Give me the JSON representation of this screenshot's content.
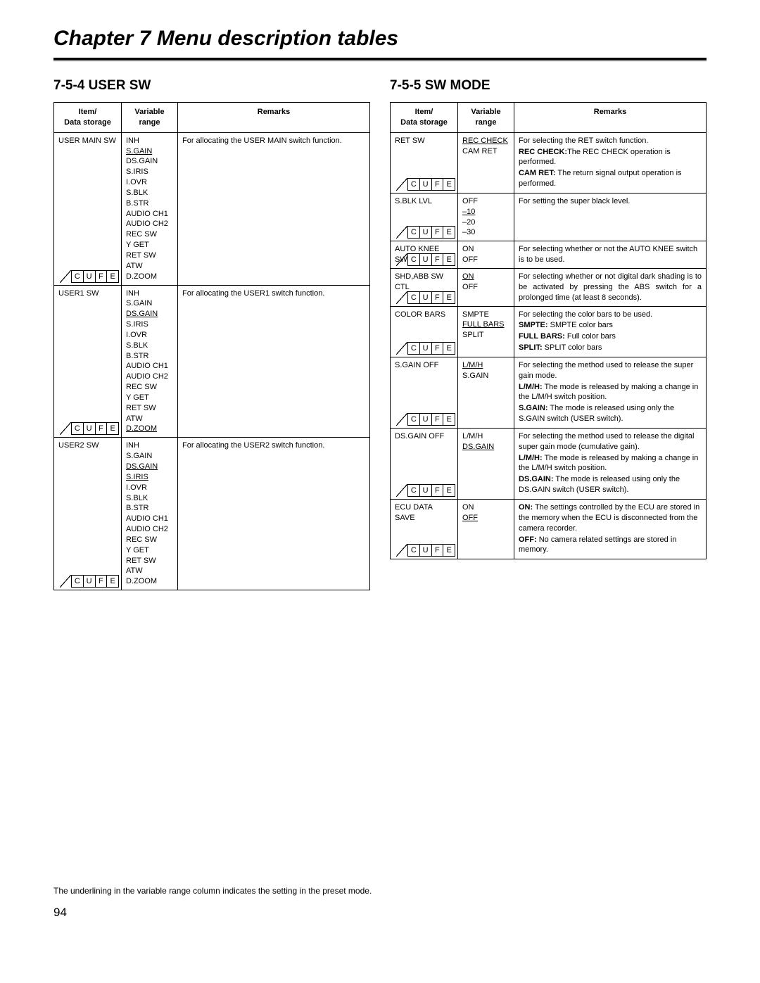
{
  "chapter_title": "Chapter 7  Menu description tables",
  "footnote": "The underlining in the variable range column indicates the setting in the preset mode.",
  "page_number": "94",
  "cufe_labels": [
    "C",
    "U",
    "F",
    "E"
  ],
  "headers": {
    "item_l1": "Item/",
    "item_l2": "Data storage",
    "vr_l1": "Variable",
    "vr_l2": "range",
    "remarks": "Remarks"
  },
  "left": {
    "section": "7-5-4 USER SW",
    "rows": [
      {
        "item": "USER MAIN SW",
        "vr": [
          {
            "t": "INH"
          },
          {
            "t": "S.GAIN",
            "d": true
          },
          {
            "t": "DS.GAIN"
          },
          {
            "t": "S.IRIS"
          },
          {
            "t": "I.OVR"
          },
          {
            "t": "S.BLK"
          },
          {
            "t": "B.STR"
          },
          {
            "t": "AUDIO CH1"
          },
          {
            "t": "AUDIO CH2"
          },
          {
            "t": "REC SW"
          },
          {
            "t": "Y GET"
          },
          {
            "t": "RET SW"
          },
          {
            "t": "ATW"
          },
          {
            "t": "D.ZOOM"
          }
        ],
        "remarks_plain_justify": "For allocating the USER MAIN switch function."
      },
      {
        "item": "USER1 SW",
        "vr": [
          {
            "t": "INH"
          },
          {
            "t": "S.GAIN"
          },
          {
            "t": "DS.GAIN",
            "d": true
          },
          {
            "t": "S.IRIS"
          },
          {
            "t": "I.OVR"
          },
          {
            "t": "S.BLK"
          },
          {
            "t": "B.STR"
          },
          {
            "t": "AUDIO CH1"
          },
          {
            "t": "AUDIO CH2"
          },
          {
            "t": "REC SW"
          },
          {
            "t": "Y GET"
          },
          {
            "t": "RET SW"
          },
          {
            "t": "ATW"
          },
          {
            "t": "D.ZOOM",
            "d": true
          }
        ],
        "remarks_plain": "For allocating the USER1 switch function."
      },
      {
        "item": "USER2 SW",
        "vr": [
          {
            "t": "INH"
          },
          {
            "t": "S.GAIN"
          },
          {
            "t": "DS.GAIN",
            "d": true
          },
          {
            "t": "S.IRIS",
            "d": true
          },
          {
            "t": "I.OVR"
          },
          {
            "t": "S.BLK"
          },
          {
            "t": "B.STR"
          },
          {
            "t": "AUDIO CH1"
          },
          {
            "t": "AUDIO CH2"
          },
          {
            "t": "REC SW"
          },
          {
            "t": "Y GET"
          },
          {
            "t": "RET SW"
          },
          {
            "t": "ATW"
          },
          {
            "t": "D.ZOOM"
          }
        ],
        "remarks_plain": "For allocating the USER2 switch function."
      }
    ]
  },
  "right": {
    "section": "7-5-5 SW MODE",
    "rows": [
      {
        "item": "RET SW",
        "vr": [
          {
            "t": "REC CHECK",
            "d": true
          },
          {
            "t": "CAM RET"
          }
        ],
        "remarks_stack": [
          {
            "plain": "For selecting the RET switch function."
          },
          {
            "label": "REC CHECK:",
            "desc": "The REC CHECK operation is performed."
          },
          {
            "label": "CAM RET:",
            "desc": " The return signal output operation is performed."
          }
        ]
      },
      {
        "item": "S.BLK LVL",
        "vr": [
          {
            "t": "OFF"
          },
          {
            "t": "–10",
            "d": true
          },
          {
            "t": "–20"
          },
          {
            "t": "–30"
          }
        ],
        "remarks_plain": "For setting the super black level."
      },
      {
        "item": "AUTO KNEE SW",
        "vr": [
          {
            "t": "ON"
          },
          {
            "t": "OFF"
          }
        ],
        "remarks_plain": "For selecting whether or not the AUTO KNEE switch is to be used."
      },
      {
        "item": "SHD,ABB SW CTL",
        "vr": [
          {
            "t": "ON",
            "d": true
          },
          {
            "t": "OFF"
          }
        ],
        "remarks_plain_justify": "For selecting whether or not digital dark shading is to be activated by pressing the ABS switch for a prolonged time (at least 8 seconds)."
      },
      {
        "item": "COLOR BARS",
        "vr": [
          {
            "t": "SMPTE"
          },
          {
            "t": "FULL BARS",
            "d": true
          },
          {
            "t": "SPLIT"
          }
        ],
        "remarks_stack": [
          {
            "plain": "For selecting the color bars to be used."
          },
          {
            "label": "SMPTE:",
            "desc": "       SMPTE color bars"
          },
          {
            "label": "FULL BARS:",
            "desc": " Full color bars"
          },
          {
            "label": "SPLIT:",
            "desc": "         SPLIT color bars"
          }
        ]
      },
      {
        "item": "S.GAIN OFF",
        "vr": [
          {
            "t": "L/M/H",
            "d": true
          },
          {
            "t": "S.GAIN"
          }
        ],
        "remarks_stack": [
          {
            "plain": "For selecting the method used to release the super gain mode."
          },
          {
            "label": "L/M/H:",
            "desc": "   The mode is released by making a change in the L/M/H switch position."
          },
          {
            "label": "S.GAIN:",
            "desc": " The mode is released using only the S.GAIN switch (USER switch)."
          }
        ]
      },
      {
        "item": "DS.GAIN OFF",
        "vr": [
          {
            "t": "L/M/H"
          },
          {
            "t": "DS.GAIN",
            "d": true
          }
        ],
        "remarks_stack": [
          {
            "plain": "For selecting the method used to release the digital super gain mode (cumulative gain)."
          },
          {
            "label": "L/M/H:",
            "desc": "     The mode is released by making a change in the L/M/H switch position."
          },
          {
            "label": "DS.GAIN:",
            "desc": " The mode is released using only the DS.GAIN switch (USER switch)."
          }
        ]
      },
      {
        "item": "ECU DATA SAVE",
        "vr": [
          {
            "t": "ON"
          },
          {
            "t": "OFF",
            "d": true
          }
        ],
        "remarks_stack": [
          {
            "label": "ON:",
            "desc": "  The settings controlled by the ECU are stored in the memory when the ECU is disconnected from the camera recorder."
          },
          {
            "label": "OFF:",
            "desc": " No camera related settings are stored in memory."
          }
        ]
      }
    ]
  }
}
